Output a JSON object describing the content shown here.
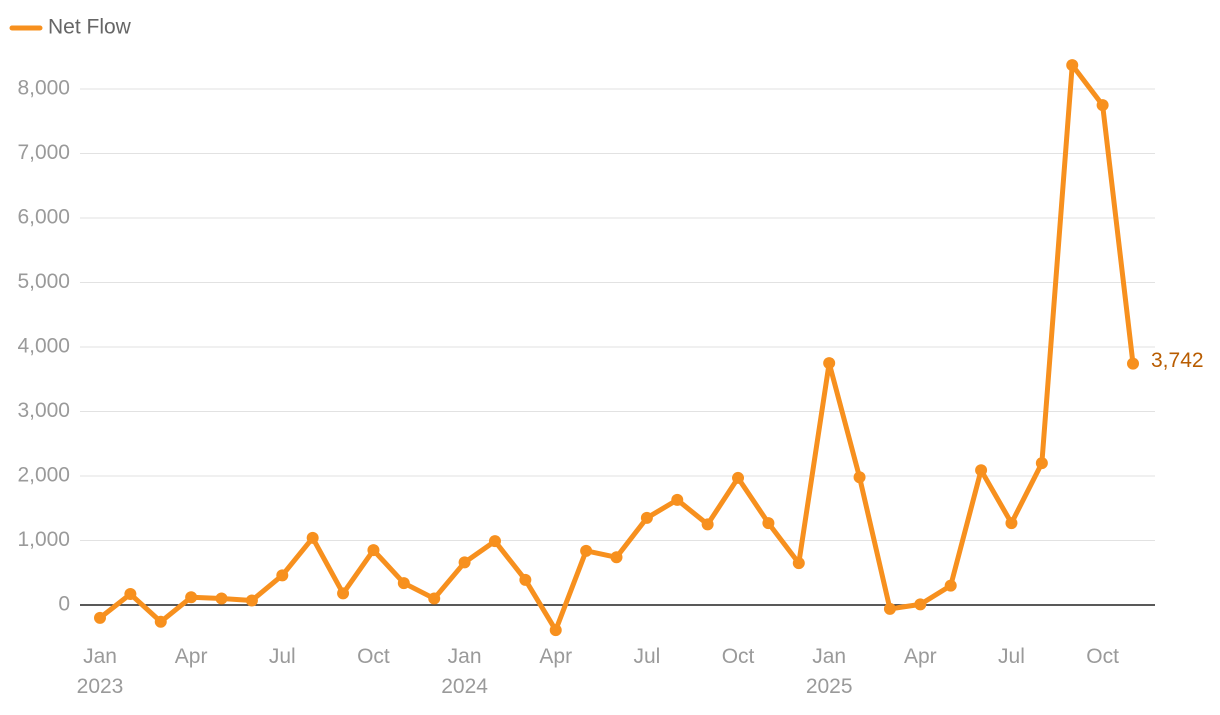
{
  "chart_data": {
    "type": "line",
    "categories": [
      "Jan 2023",
      null,
      null,
      "Apr",
      null,
      null,
      "Jul",
      null,
      null,
      "Oct",
      null,
      null,
      "Jan 2024",
      null,
      null,
      "Apr",
      null,
      null,
      "Jul",
      null,
      null,
      "Oct",
      null,
      null,
      "Jan 2025",
      null,
      null,
      "Apr",
      null,
      null,
      "Jul",
      null,
      null,
      "Oct",
      null
    ],
    "series": [
      {
        "name": "Net Flow",
        "color": "#f7901e",
        "values": [
          -200,
          170,
          -260,
          120,
          100,
          70,
          460,
          1040,
          180,
          850,
          340,
          100,
          660,
          990,
          390,
          -390,
          840,
          740,
          1350,
          1630,
          1250,
          1970,
          1270,
          650,
          3750,
          1980,
          -60,
          10,
          300,
          2090,
          1270,
          2200,
          8370,
          7750,
          3742
        ],
        "value_labels": [
          null,
          null,
          null,
          null,
          null,
          null,
          null,
          null,
          null,
          null,
          null,
          null,
          null,
          null,
          null,
          null,
          null,
          null,
          null,
          null,
          null,
          null,
          null,
          null,
          null,
          null,
          null,
          null,
          null,
          null,
          null,
          null,
          null,
          null,
          "3,742"
        ]
      }
    ],
    "ylim": [
      -600,
      8500
    ],
    "yticks": [
      0,
      {
        "value": 1000,
        "label": "1,000"
      },
      {
        "value": 2000,
        "label": "2,000"
      },
      {
        "value": 3000,
        "label": "3,000"
      },
      {
        "value": 4000,
        "label": "4,000"
      },
      {
        "value": 5000,
        "label": "5,000"
      },
      {
        "value": 6000,
        "label": "6,000"
      },
      {
        "value": 7000,
        "label": "7,000"
      },
      {
        "value": 8000,
        "label": "8,000"
      }
    ],
    "grid": true,
    "legend": "top-left"
  }
}
